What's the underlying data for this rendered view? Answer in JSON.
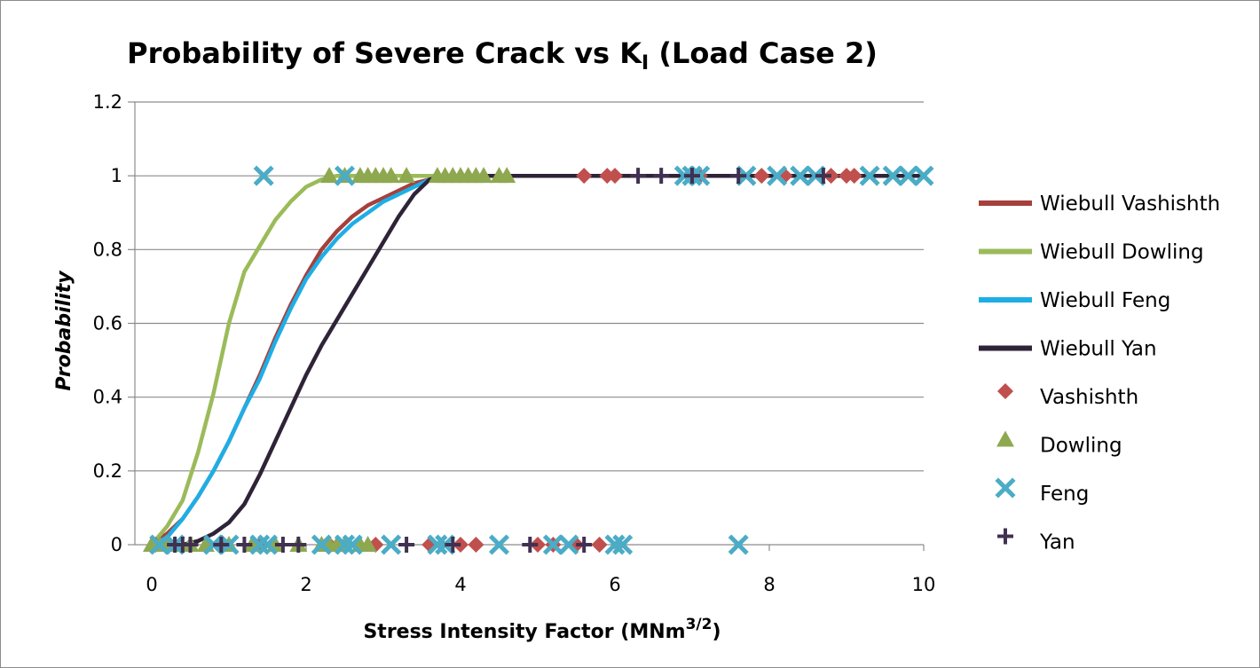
{
  "chart_data": {
    "type": "scatter",
    "title": "Probability of Severe Crack vs K",
    "title_subscript": "I",
    "title_suffix": " (Load Case 2)",
    "xlabel": "Stress Intensity Factor (MNm",
    "xlabel_superscript": "3/2",
    "xlabel_suffix": ")",
    "ylabel": "Probability",
    "xlim": [
      0,
      10
    ],
    "ylim": [
      0,
      1.2
    ],
    "x_ticks": [
      0,
      2,
      4,
      6,
      8,
      10
    ],
    "y_ticks": [
      0,
      0.2,
      0.4,
      0.6,
      0.8,
      1,
      1.2
    ],
    "grid": "horizontal",
    "legend_position": "right",
    "series": [
      {
        "name": "Wiebull Vashishth",
        "kind": "line",
        "color": "#a6403c",
        "x": [
          0,
          0.2,
          0.4,
          0.6,
          0.8,
          1.0,
          1.2,
          1.4,
          1.6,
          1.8,
          2.0,
          2.2,
          2.4,
          2.6,
          2.8,
          3.0,
          3.2,
          3.4,
          3.6,
          3.8,
          4.0,
          4.5,
          5,
          6,
          7,
          8,
          9,
          10
        ],
        "y": [
          0,
          0.03,
          0.07,
          0.13,
          0.2,
          0.28,
          0.37,
          0.46,
          0.56,
          0.65,
          0.73,
          0.8,
          0.85,
          0.89,
          0.92,
          0.94,
          0.96,
          0.98,
          0.99,
          0.995,
          1,
          1,
          1,
          1,
          1,
          1,
          1,
          1
        ]
      },
      {
        "name": "Wiebull Dowling",
        "kind": "line",
        "color": "#9bbb59",
        "x": [
          0,
          0.2,
          0.4,
          0.6,
          0.8,
          1.0,
          1.2,
          1.4,
          1.6,
          1.8,
          2.0,
          2.2,
          2.4,
          2.6,
          2.8,
          3.0,
          4.0
        ],
        "y": [
          0,
          0.05,
          0.12,
          0.25,
          0.41,
          0.6,
          0.74,
          0.81,
          0.88,
          0.93,
          0.97,
          0.99,
          1,
          1,
          1,
          1,
          1
        ]
      },
      {
        "name": "Wiebull Feng",
        "kind": "line",
        "color": "#1eaee6",
        "x": [
          0,
          0.2,
          0.4,
          0.6,
          0.8,
          1.0,
          1.2,
          1.4,
          1.6,
          1.8,
          2.0,
          2.2,
          2.4,
          2.6,
          2.8,
          3.0,
          3.2,
          3.4,
          3.6,
          3.8,
          4.0
        ],
        "y": [
          0,
          0.02,
          0.07,
          0.13,
          0.2,
          0.28,
          0.37,
          0.45,
          0.55,
          0.64,
          0.72,
          0.78,
          0.83,
          0.87,
          0.9,
          0.93,
          0.95,
          0.97,
          0.99,
          1,
          1
        ]
      },
      {
        "name": "Wiebull Yan",
        "kind": "line",
        "color": "#2f2338",
        "x": [
          0.4,
          0.6,
          0.8,
          1.0,
          1.2,
          1.4,
          1.6,
          1.8,
          2.0,
          2.2,
          2.4,
          2.6,
          2.8,
          3.0,
          3.2,
          3.4,
          3.6,
          3.8,
          4.0,
          5,
          6,
          7,
          8,
          9,
          10
        ],
        "y": [
          0,
          0.01,
          0.03,
          0.06,
          0.11,
          0.19,
          0.28,
          0.37,
          0.46,
          0.54,
          0.61,
          0.68,
          0.75,
          0.82,
          0.89,
          0.95,
          0.99,
          1,
          1,
          1,
          1,
          1,
          1,
          1,
          1
        ]
      },
      {
        "name": "Vashishth",
        "kind": "marker",
        "marker": "diamond",
        "color": "#c0504d",
        "points": [
          [
            0.05,
            0
          ],
          [
            0.2,
            0
          ],
          [
            0.9,
            0
          ],
          [
            1.4,
            0
          ],
          [
            2.3,
            0
          ],
          [
            2.9,
            0
          ],
          [
            3.6,
            0
          ],
          [
            4.0,
            0
          ],
          [
            4.2,
            0
          ],
          [
            5.0,
            0
          ],
          [
            5.2,
            0
          ],
          [
            5.5,
            0
          ],
          [
            5.8,
            0
          ],
          [
            5.6,
            1
          ],
          [
            5.9,
            1
          ],
          [
            6.0,
            1
          ],
          [
            7.1,
            1
          ],
          [
            7.9,
            1
          ],
          [
            8.2,
            1
          ],
          [
            8.8,
            1
          ],
          [
            9.0,
            1
          ],
          [
            9.1,
            1
          ]
        ]
      },
      {
        "name": "Dowling",
        "kind": "marker",
        "marker": "triangle",
        "color": "#8ea850",
        "points": [
          [
            0,
            0
          ],
          [
            0.1,
            0
          ],
          [
            0.2,
            0
          ],
          [
            0.3,
            0
          ],
          [
            0.5,
            0
          ],
          [
            0.7,
            0
          ],
          [
            1.0,
            0
          ],
          [
            1.3,
            0
          ],
          [
            1.6,
            0
          ],
          [
            1.9,
            0
          ],
          [
            2.2,
            0
          ],
          [
            2.3,
            0
          ],
          [
            2.4,
            0
          ],
          [
            2.5,
            0
          ],
          [
            2.7,
            0
          ],
          [
            2.8,
            0
          ],
          [
            2.3,
            1
          ],
          [
            2.5,
            1
          ],
          [
            2.7,
            1
          ],
          [
            2.8,
            1
          ],
          [
            2.9,
            1
          ],
          [
            3.0,
            1
          ],
          [
            3.1,
            1
          ],
          [
            3.3,
            1
          ],
          [
            3.7,
            1
          ],
          [
            3.8,
            1
          ],
          [
            3.9,
            1
          ],
          [
            4.0,
            1
          ],
          [
            4.1,
            1
          ],
          [
            4.2,
            1
          ],
          [
            4.3,
            1
          ],
          [
            4.5,
            1
          ],
          [
            4.6,
            1
          ]
        ]
      },
      {
        "name": "Feng",
        "kind": "marker",
        "marker": "x",
        "color": "#4bacc6",
        "points": [
          [
            0.1,
            0
          ],
          [
            0.3,
            0
          ],
          [
            0.8,
            0
          ],
          [
            1.0,
            0
          ],
          [
            1.4,
            0
          ],
          [
            1.5,
            0
          ],
          [
            2.2,
            0
          ],
          [
            2.5,
            0
          ],
          [
            2.6,
            0
          ],
          [
            3.1,
            0
          ],
          [
            3.7,
            0
          ],
          [
            3.8,
            0
          ],
          [
            4.5,
            0
          ],
          [
            5.2,
            0
          ],
          [
            5.4,
            0
          ],
          [
            6.0,
            0
          ],
          [
            6.1,
            0
          ],
          [
            7.6,
            0
          ],
          [
            1.45,
            1
          ],
          [
            2.5,
            1
          ],
          [
            6.9,
            1
          ],
          [
            7.0,
            1
          ],
          [
            7.1,
            1
          ],
          [
            7.7,
            1
          ],
          [
            8.1,
            1
          ],
          [
            8.4,
            1
          ],
          [
            8.6,
            1
          ],
          [
            9.3,
            1
          ],
          [
            9.6,
            1
          ],
          [
            9.8,
            1
          ],
          [
            10.0,
            1
          ]
        ]
      },
      {
        "name": "Yan",
        "kind": "marker",
        "marker": "plus",
        "color": "#403152",
        "points": [
          [
            0.3,
            0
          ],
          [
            0.4,
            0
          ],
          [
            0.5,
            0
          ],
          [
            0.9,
            0
          ],
          [
            1.2,
            0
          ],
          [
            1.7,
            0
          ],
          [
            1.9,
            0
          ],
          [
            3.3,
            0
          ],
          [
            3.9,
            0
          ],
          [
            4.9,
            0
          ],
          [
            5.6,
            0
          ],
          [
            6.3,
            1
          ],
          [
            6.6,
            1
          ],
          [
            7.0,
            1
          ],
          [
            7.6,
            1
          ],
          [
            8.7,
            1
          ]
        ]
      }
    ]
  }
}
